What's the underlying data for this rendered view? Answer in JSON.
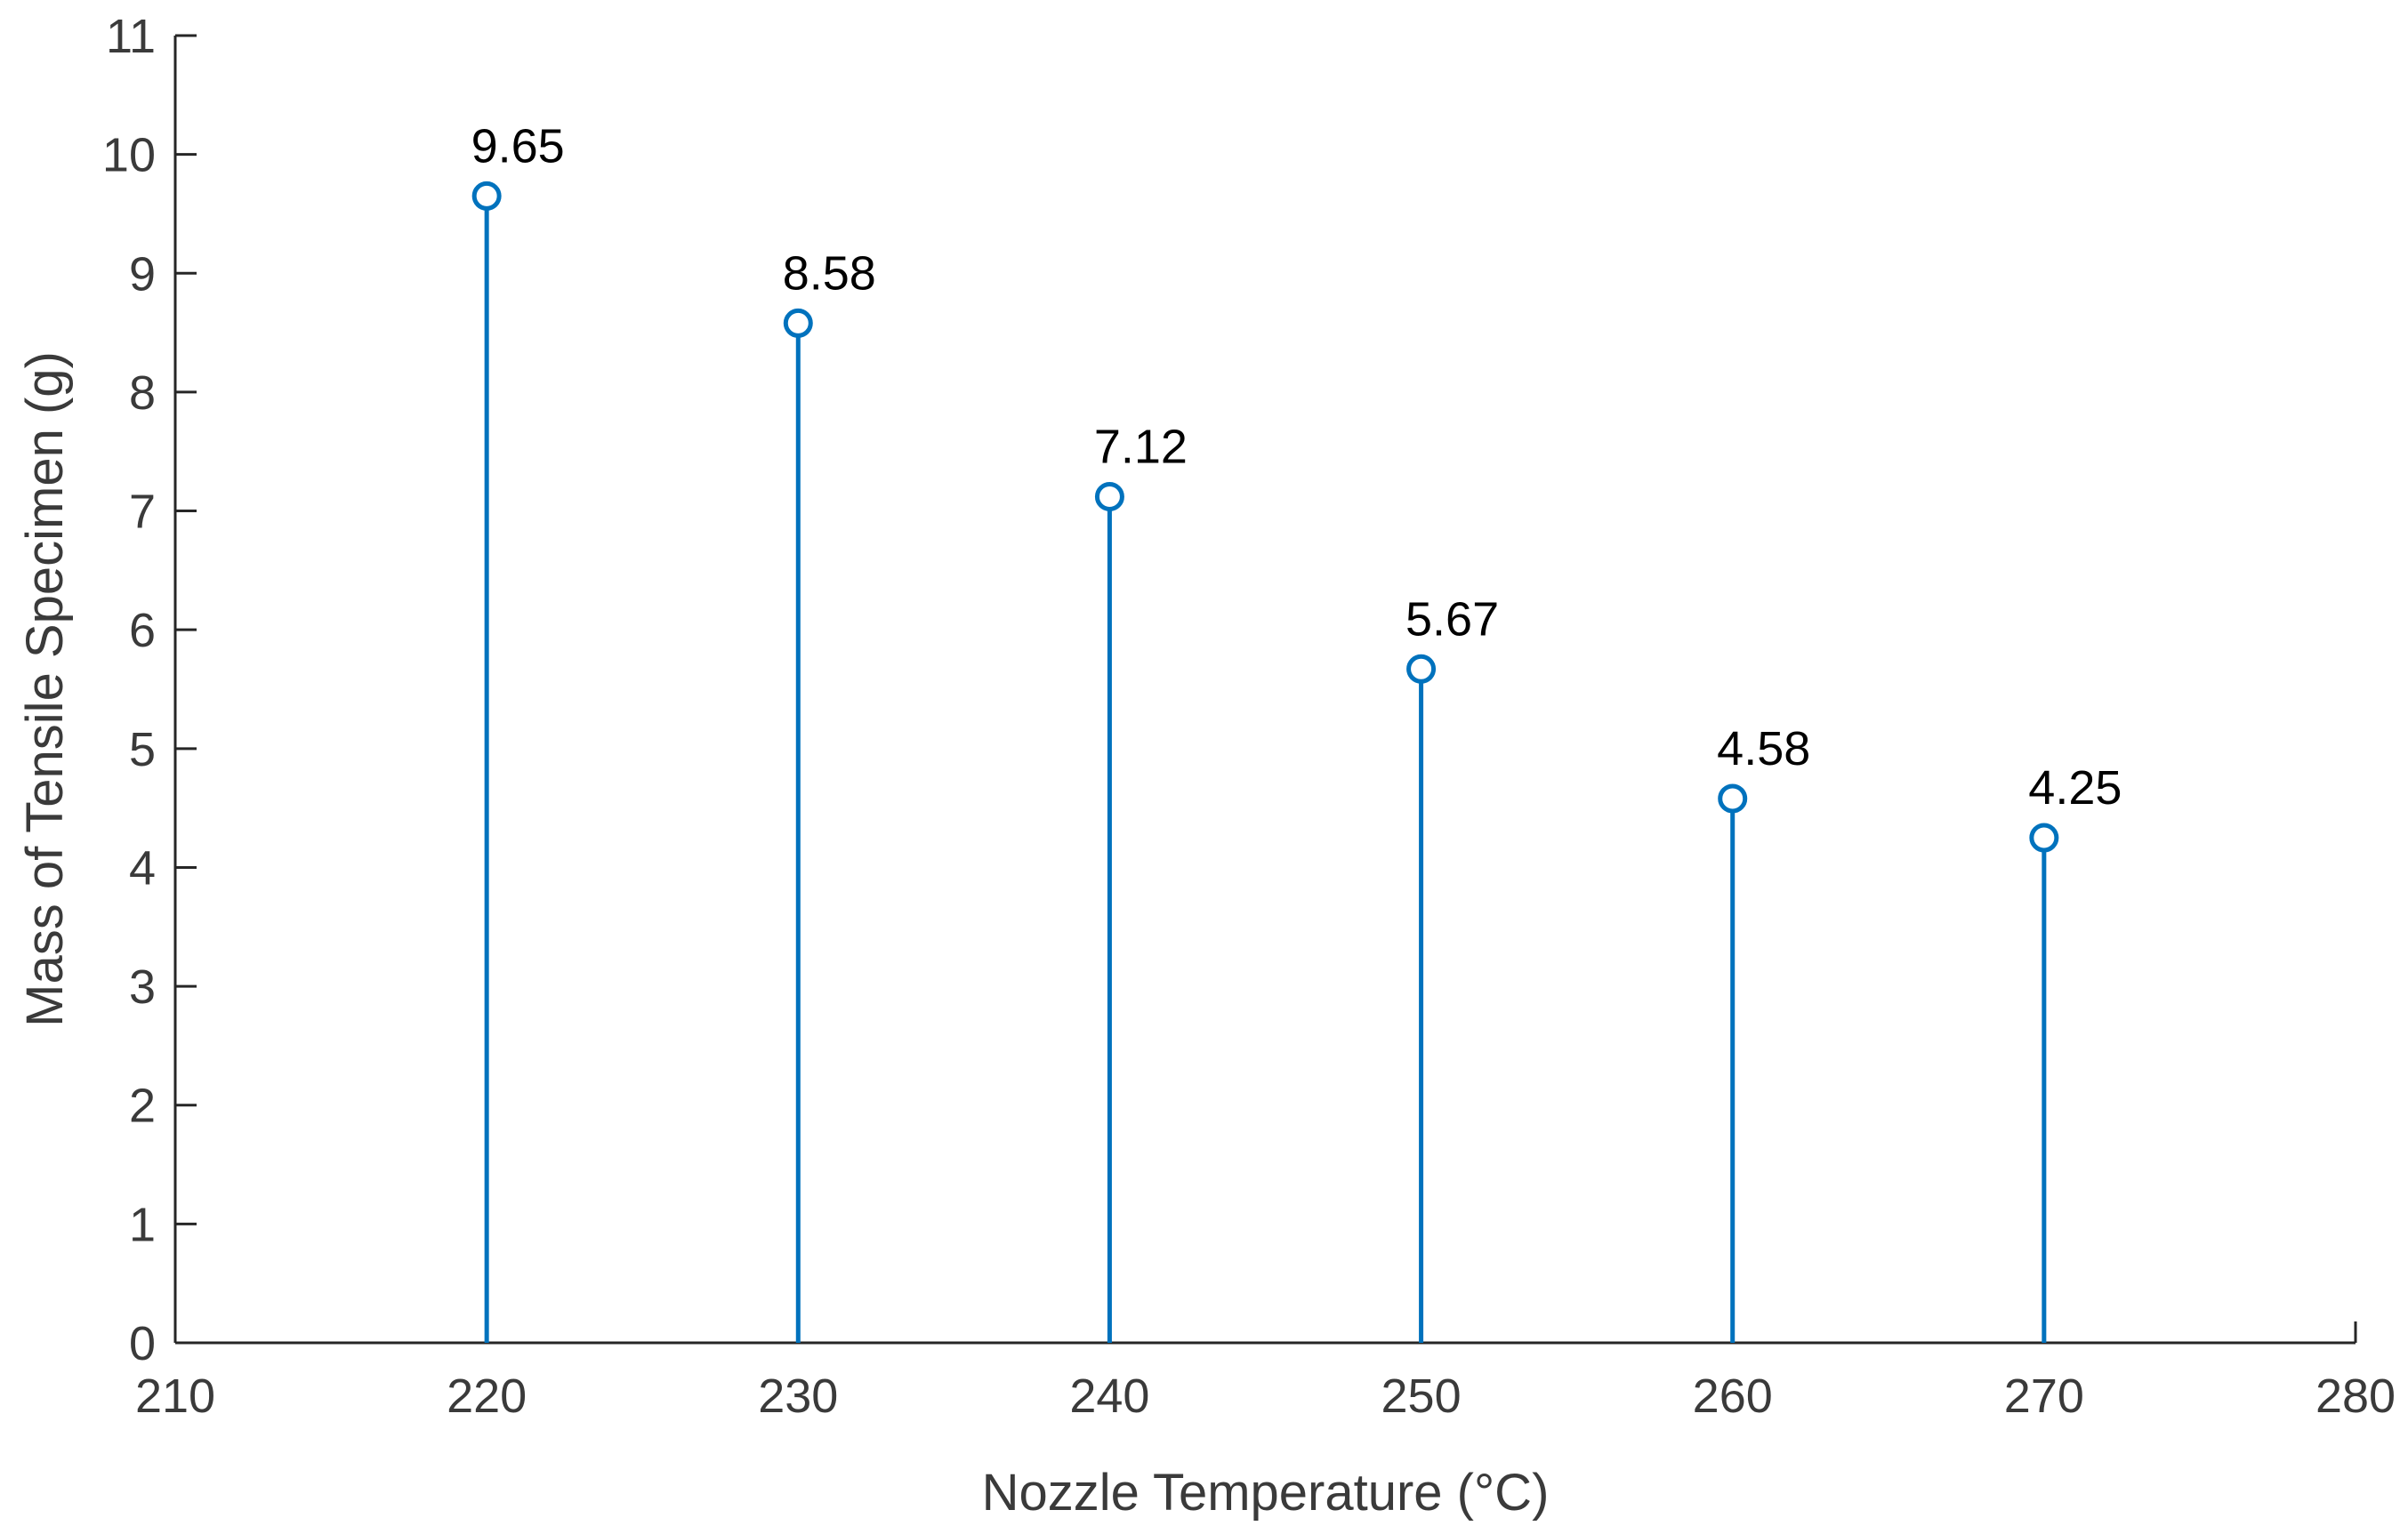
{
  "chart_data": {
    "type": "stem",
    "title": "",
    "xlabel": "Nozzle Temperature (°C)",
    "ylabel": "Mass of Tensile Specimen (g)",
    "xlim": [
      210,
      280
    ],
    "ylim": [
      0,
      11
    ],
    "x_ticks": [
      210,
      220,
      230,
      240,
      250,
      260,
      270,
      280
    ],
    "y_ticks": [
      0,
      1,
      2,
      3,
      4,
      5,
      6,
      7,
      8,
      9,
      10,
      11
    ],
    "grid": false,
    "series": [
      {
        "x": [
          220,
          230,
          240,
          250,
          260,
          270
        ],
        "values": [
          9.65,
          8.58,
          7.12,
          5.67,
          4.58,
          4.25
        ],
        "labels": [
          "9.65",
          "8.58",
          "7.12",
          "5.67",
          "4.58",
          "4.25"
        ],
        "color": "#0072BD",
        "marker": "circle-open"
      }
    ]
  }
}
